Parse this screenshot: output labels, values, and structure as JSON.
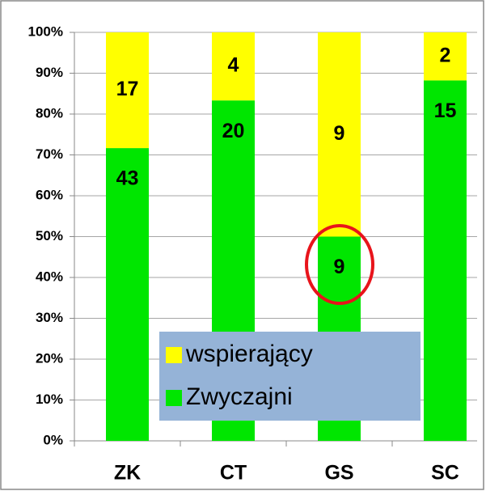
{
  "chart_data": {
    "type": "bar",
    "stacking": "percent",
    "categories": [
      "ZK",
      "CT",
      "GS",
      "SC"
    ],
    "series": [
      {
        "name": "Zwyczajni",
        "color": "#00e600",
        "values": [
          43,
          20,
          9,
          15
        ]
      },
      {
        "name": "wspierający",
        "color": "#ffff00",
        "values": [
          17,
          4,
          9,
          2
        ]
      }
    ],
    "ylim": [
      0,
      100
    ],
    "yticks": [
      {
        "value": 0,
        "label": "0%"
      },
      {
        "value": 10,
        "label": "10%"
      },
      {
        "value": 20,
        "label": "20%"
      },
      {
        "value": 30,
        "label": "30%"
      },
      {
        "value": 40,
        "label": "40%"
      },
      {
        "value": 50,
        "label": "50%"
      },
      {
        "value": 60,
        "label": "60%"
      },
      {
        "value": 70,
        "label": "70%"
      },
      {
        "value": 80,
        "label": "80%"
      },
      {
        "value": 90,
        "label": "90%"
      },
      {
        "value": 100,
        "label": "100%"
      }
    ],
    "grid": true,
    "legend": "bottom-center"
  }
}
